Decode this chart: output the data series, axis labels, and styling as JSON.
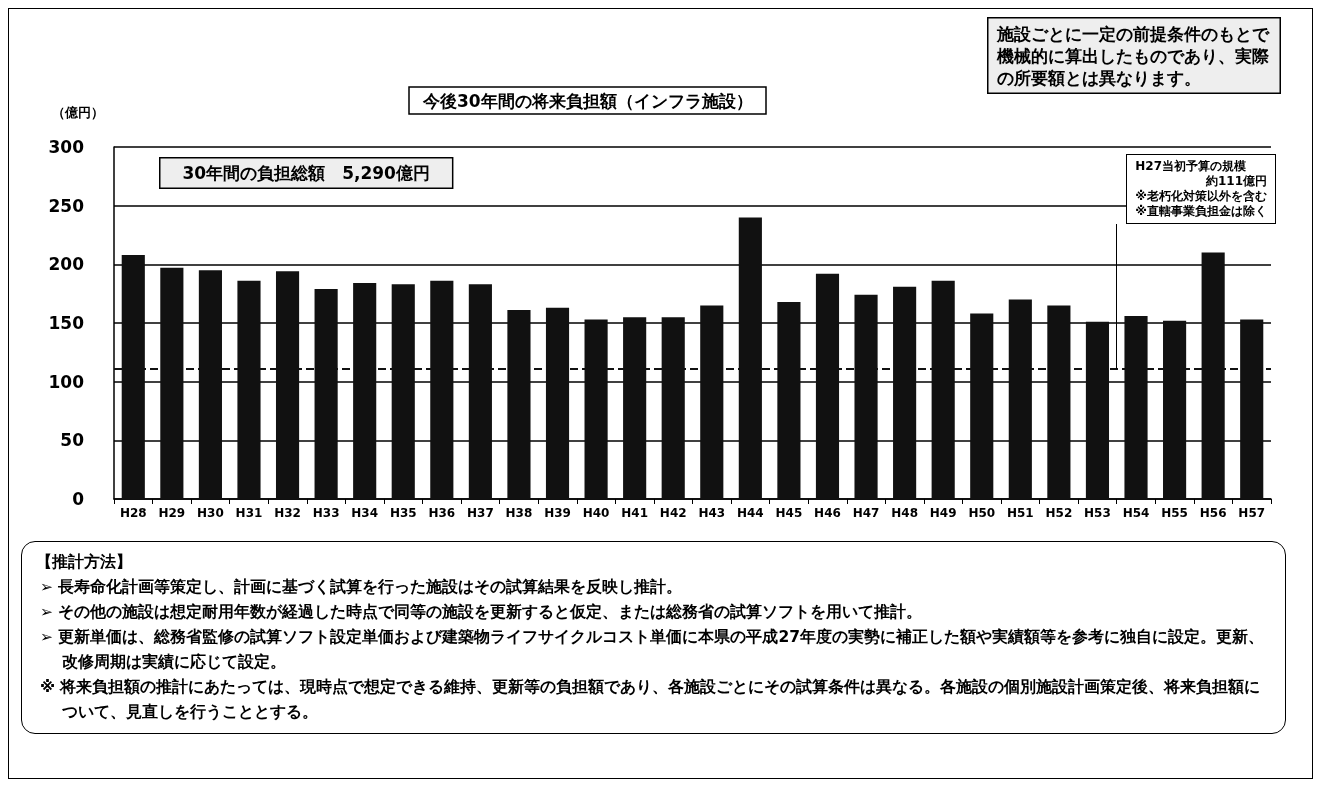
{
  "chart_data": {
    "type": "bar",
    "title": "今後30年間の将来負担額（インフラ施設）",
    "ylabel": "（億円）",
    "categories": [
      "H28",
      "H29",
      "H30",
      "H31",
      "H32",
      "H33",
      "H34",
      "H35",
      "H36",
      "H37",
      "H38",
      "H39",
      "H40",
      "H41",
      "H42",
      "H43",
      "H44",
      "H45",
      "H46",
      "H47",
      "H48",
      "H49",
      "H50",
      "H51",
      "H52",
      "H53",
      "H54",
      "H55",
      "H56",
      "H57"
    ],
    "values": [
      208,
      197,
      195,
      186,
      194,
      179,
      184,
      183,
      186,
      183,
      161,
      163,
      153,
      155,
      155,
      165,
      240,
      168,
      192,
      174,
      181,
      186,
      158,
      170,
      165,
      151,
      156,
      152,
      210,
      153
    ],
    "color": "#111111",
    "ylim": [
      0,
      300
    ],
    "yticks": [
      0,
      50,
      100,
      150,
      200,
      250,
      300
    ],
    "grid": "y",
    "ref_lines": [
      {
        "axis": "y",
        "value": 111,
        "label": "H27当初予算の規模",
        "color": "#111111",
        "line_style": "dashed"
      }
    ],
    "annotations": [
      "30年間の負担総額　5,290億円",
      "施設ごとに一定の前提条件のもとで機械的に算出したものであり、実際の所要額とは異なります。",
      "約111億円",
      "※老朽化対策以外を含む",
      "※直轄事業負担金は除く",
      "【推計方法】",
      "➢ 長寿命化計画等策定し、計画に基づく試算を行った施設はその試算結果を反映し推計。",
      "➢ その他の施設は想定耐用年数が経過した時点で同等の施設を更新すると仮定、または総務省の試算ソフトを用いて推計。",
      "➢ 更新単価は、総務省監修の試算ソフト設定単価および建築物ライフサイクルコスト単価に本県の平成27年度の実勢に補正した額や実績額等を参考に独自に設定。更新、改修周期は実績に応じて設定。",
      "※ 将来負担額の推計にあたっては、現時点で想定できる維持、更新等の負担額であり、各施設ごとにその試算条件は異なる。各施設の個別施設計画策定後、将来負担額について、見直しを行うこととする。"
    ]
  }
}
